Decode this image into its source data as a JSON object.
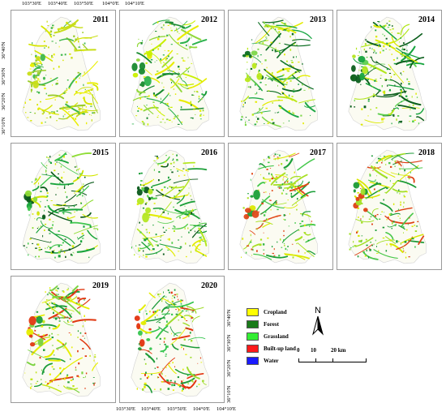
{
  "top_lon_labels": [
    "103°30'E",
    "103°40'E",
    "103°50'E",
    "104°0'E",
    "104°10'E"
  ],
  "bottom_lon_labels": [
    "103°30'E",
    "103°40'E",
    "103°50'E",
    "104°0'E",
    "104°10'E"
  ],
  "lat_labels": [
    "36°40'N",
    "36°30'N",
    "36°20'N",
    "36°10'N"
  ],
  "panels": [
    {
      "year": "2011",
      "palette": [
        "#e9ef00",
        "#d6e500",
        "#c8de18",
        "#9bcc2a",
        "#3fb84b"
      ]
    },
    {
      "year": "2012",
      "palette": [
        "#e7ec00",
        "#caf000",
        "#92d83b",
        "#2bb24d",
        "#188a2f"
      ]
    },
    {
      "year": "2013",
      "palette": [
        "#e3ec00",
        "#b9e81a",
        "#7ed74a",
        "#1ea847",
        "#0c6e23"
      ]
    },
    {
      "year": "2014",
      "palette": [
        "#dcea00",
        "#b2e61d",
        "#5fd050",
        "#16a43e",
        "#0b5f1c"
      ]
    },
    {
      "year": "2015",
      "palette": [
        "#d3e600",
        "#8fdd35",
        "#3fc64d",
        "#19a43b",
        "#0a5a1a"
      ]
    },
    {
      "year": "2016",
      "palette": [
        "#e2ec00",
        "#b5e722",
        "#55cd4c",
        "#1b9f38",
        "#0a591a"
      ]
    },
    {
      "year": "2017",
      "palette": [
        "#dbe900",
        "#a8e024",
        "#45c84c",
        "#1b9f38",
        "#e24a1a"
      ]
    },
    {
      "year": "2018",
      "palette": [
        "#d8e800",
        "#a2df27",
        "#4bc84c",
        "#1a9a35",
        "#de4013"
      ]
    },
    {
      "year": "2019",
      "palette": [
        "#e6ee00",
        "#c1e51b",
        "#7bd341",
        "#1d9d39",
        "#e03811"
      ]
    },
    {
      "year": "2020",
      "palette": [
        "#e4ed00",
        "#9fdc2d",
        "#35c54e",
        "#1e9c3a",
        "#e3330f"
      ]
    }
  ],
  "legend": {
    "items": [
      {
        "label": "Cropland",
        "color": "#ffff00"
      },
      {
        "label": "Forest",
        "color": "#1a7a1a"
      },
      {
        "label": "Grassland",
        "color": "#33ee33"
      },
      {
        "label": "Built-up land",
        "color": "#ff1a1a"
      },
      {
        "label": "Water",
        "color": "#1a1aff"
      }
    ]
  },
  "north_arrow": {
    "label": "N"
  },
  "scale_bar": {
    "labels": [
      "0",
      "10",
      "20 km"
    ]
  }
}
